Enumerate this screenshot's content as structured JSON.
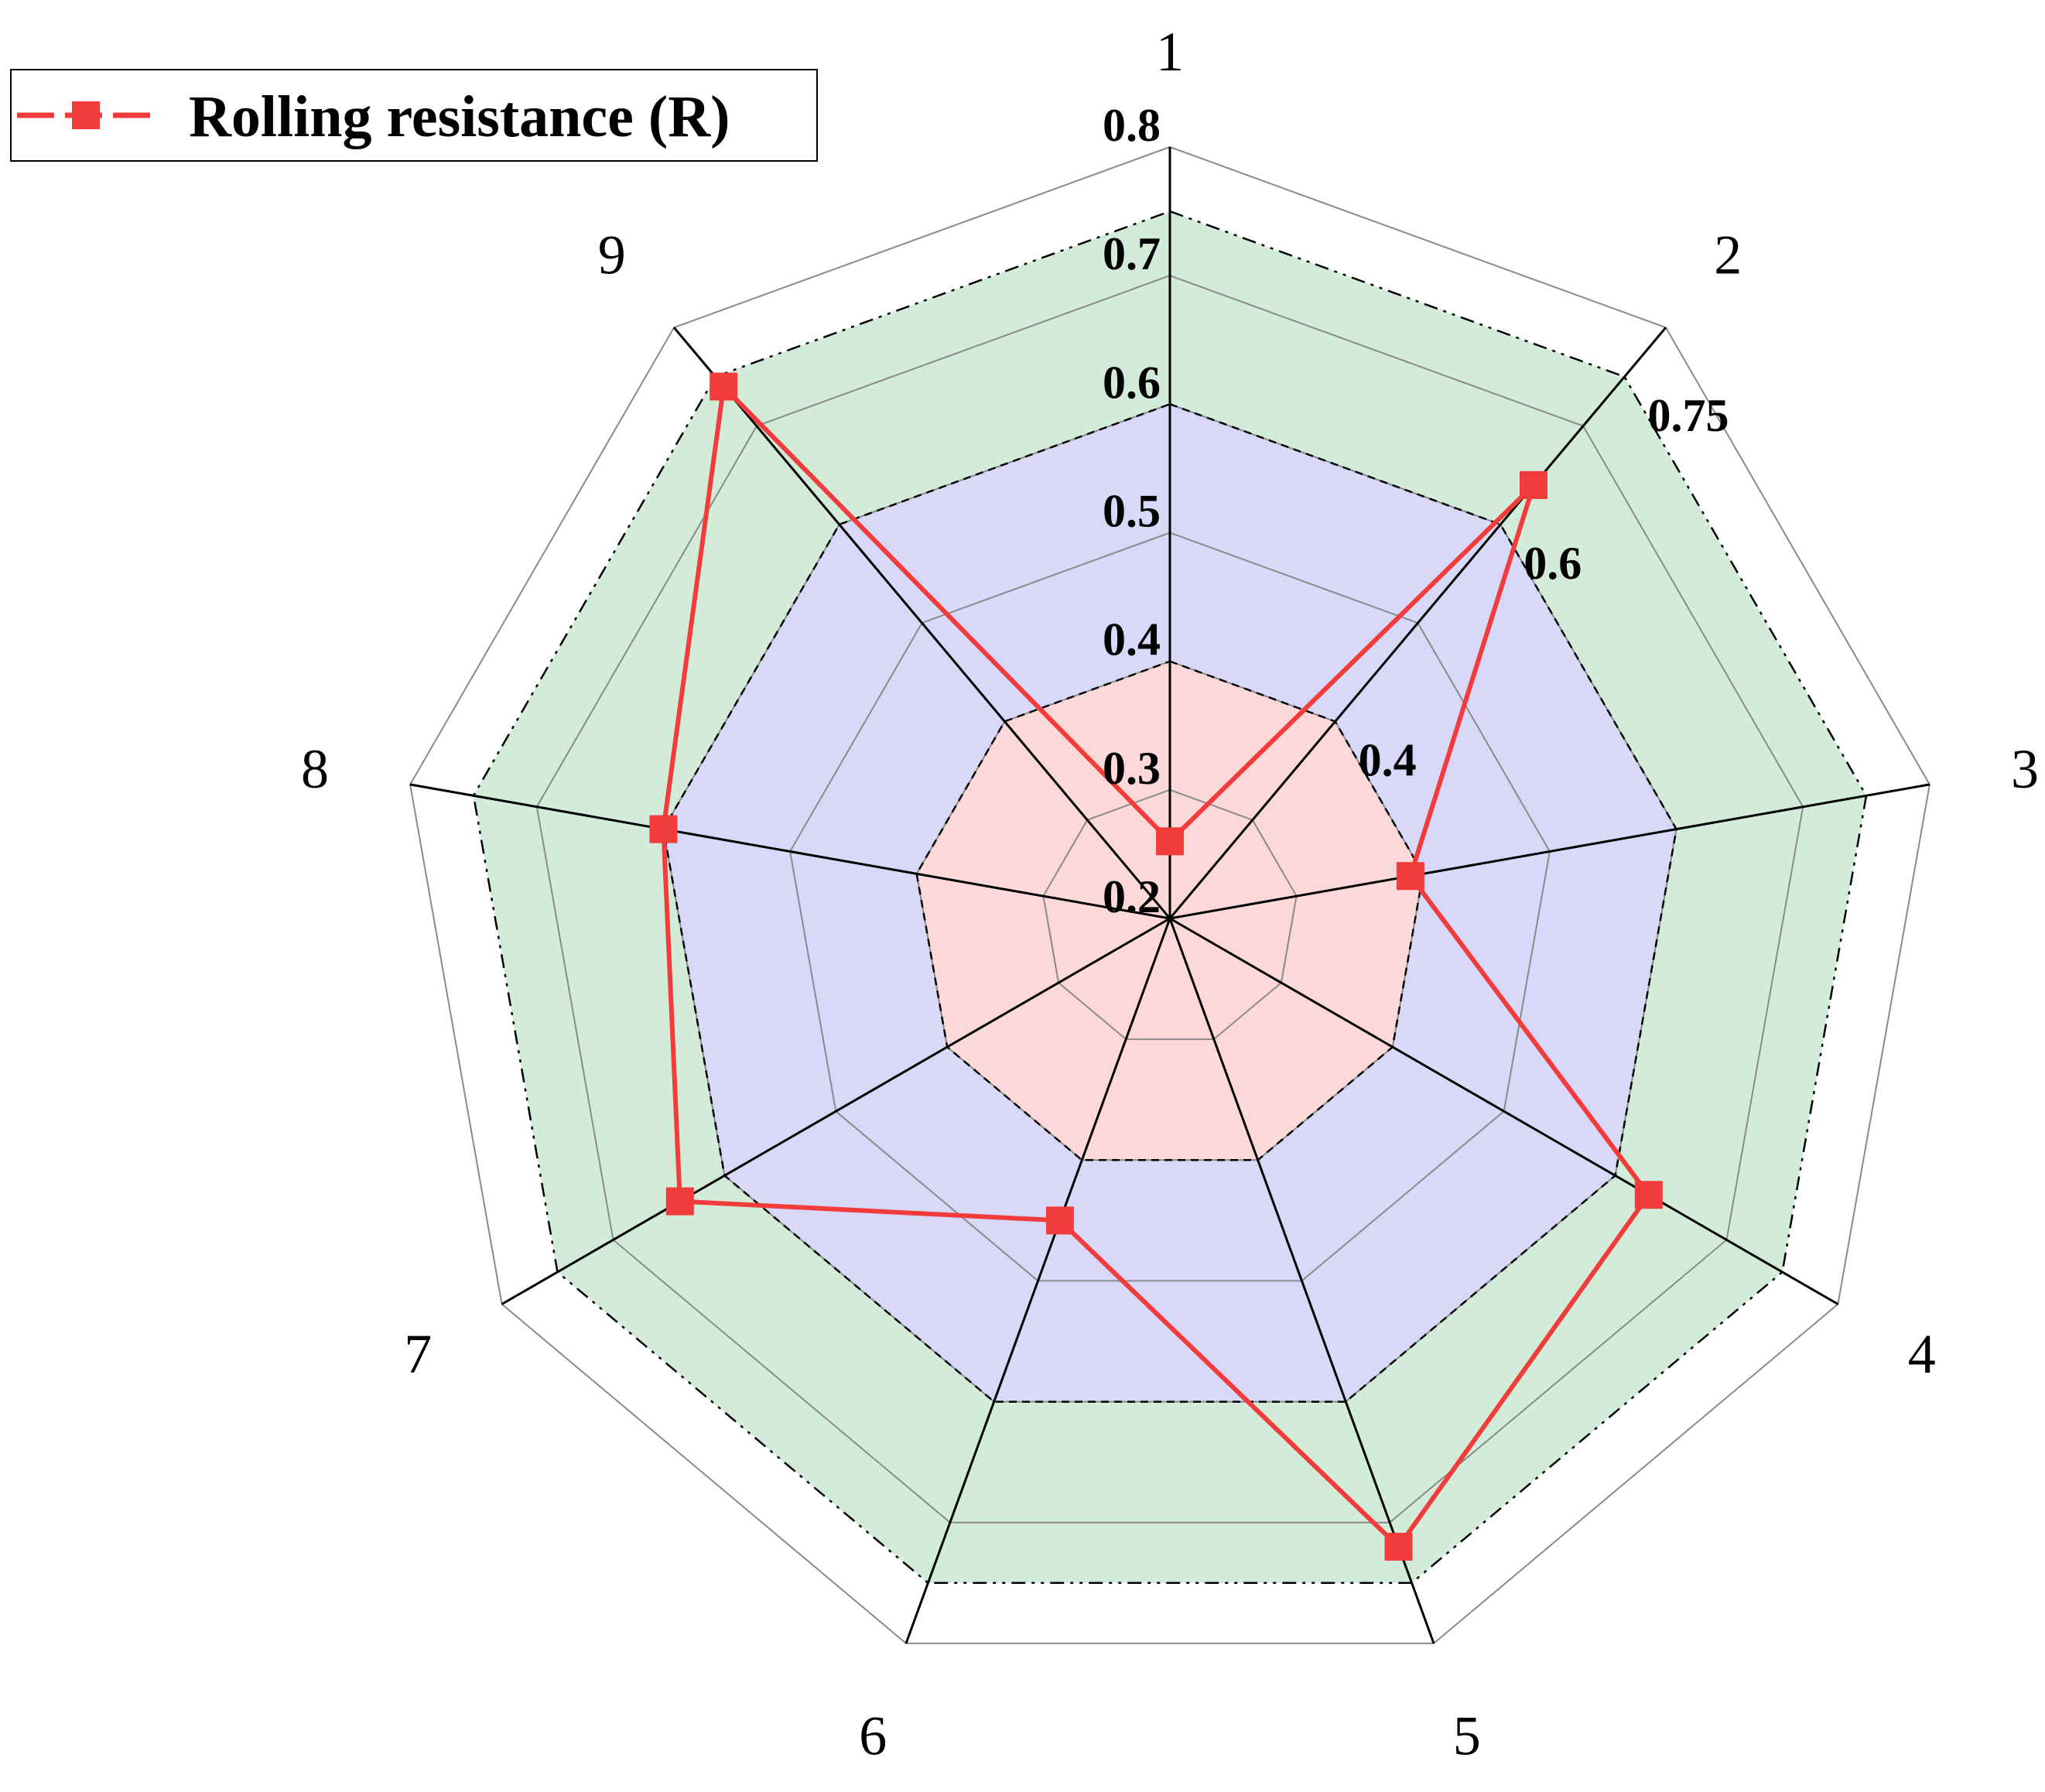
{
  "chart_data": {
    "type": "radar",
    "categories": [
      "1",
      "2",
      "3",
      "4",
      "5",
      "6",
      "7",
      "8",
      "9"
    ],
    "series": [
      {
        "name": "Rolling resistance (R)",
        "color": "#f23b3b",
        "marker": "square",
        "values": [
          0.26,
          0.64,
          0.39,
          0.63,
          0.72,
          0.45,
          0.64,
          0.6,
          0.74
        ]
      }
    ],
    "rlim": [
      0.2,
      0.8
    ],
    "grid": true,
    "axis1_ticks": [
      "0.2",
      "0.3",
      "0.4",
      "0.5",
      "0.6",
      "0.7",
      "0.8"
    ],
    "axis2_ticks": [
      "0.4",
      "0.6",
      "0.75"
    ],
    "bands": [
      {
        "from": 0.2,
        "to": 0.4,
        "color": "#fcd8d8"
      },
      {
        "from": 0.4,
        "to": 0.6,
        "color": "#d8d8f8"
      },
      {
        "from": 0.6,
        "to": 0.75,
        "color": "#d2ecd9"
      }
    ],
    "legend": {
      "position": "top-left"
    }
  }
}
